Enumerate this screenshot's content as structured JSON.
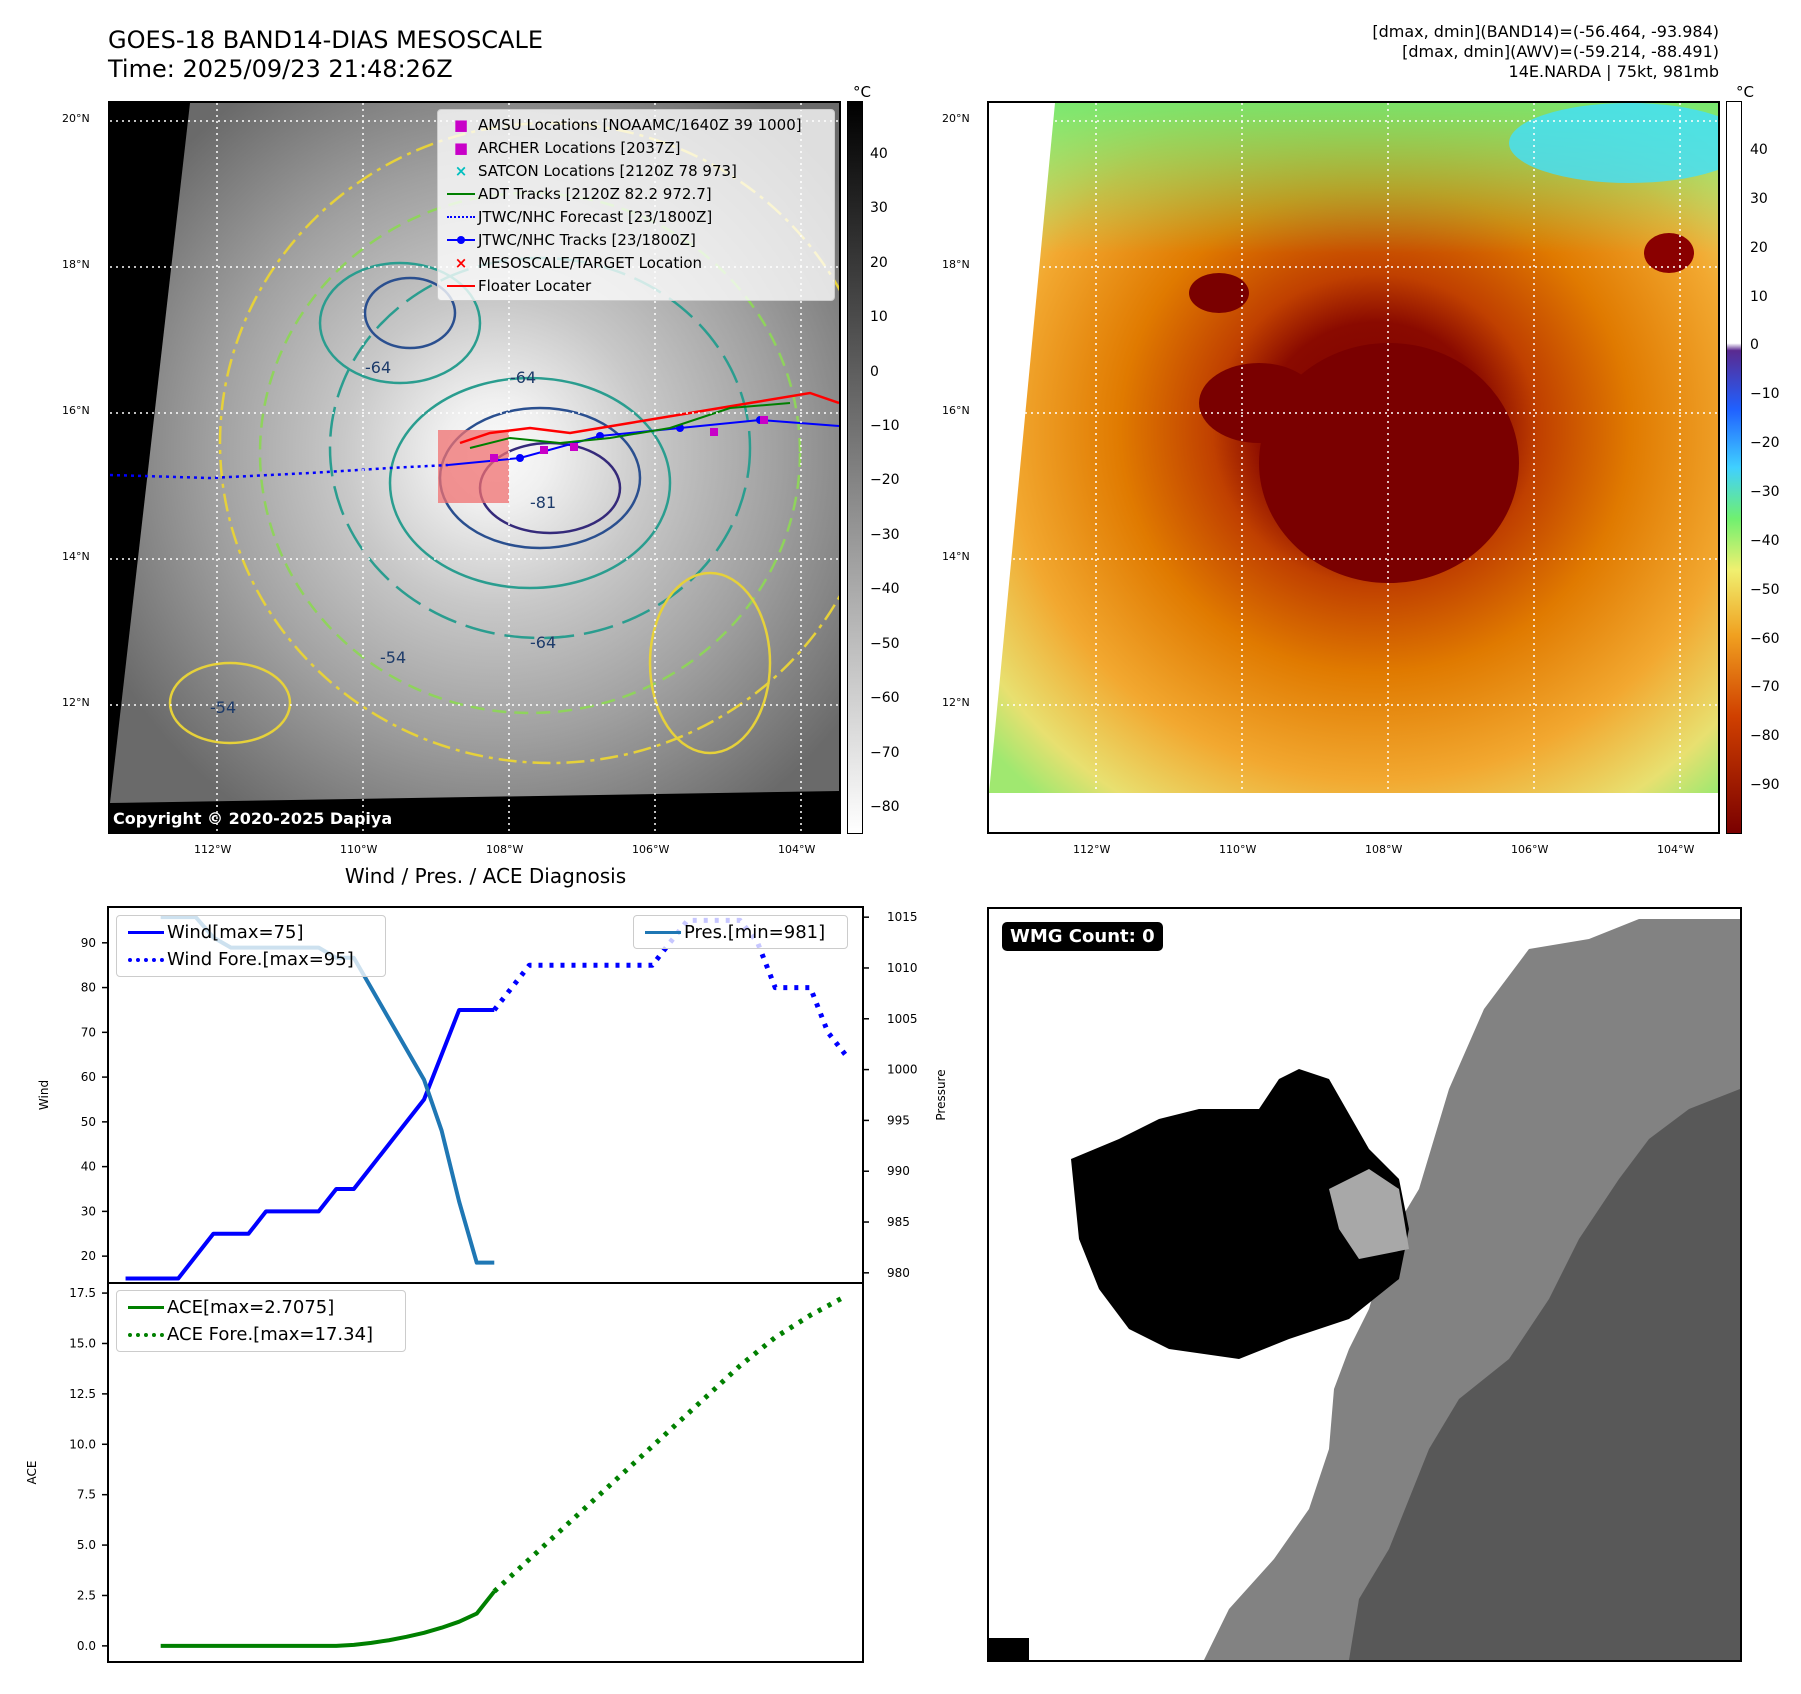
{
  "header": {
    "title_line1": "GOES-18 BAND14-DIAS MESOSCALE",
    "title_line2": "Time: 2025/09/23 21:48:26Z",
    "info_line1": "[dmax, dmin](BAND14)=(-56.464, -93.984)",
    "info_line2": "[dmax, dmin](AWV)=(-59.214, -88.491)",
    "info_line3": "14E.NARDA | 75kt, 981mb"
  },
  "map_axes": {
    "lat_labels": [
      "20°N",
      "18°N",
      "16°N",
      "14°N",
      "12°N"
    ],
    "lon_labels": [
      "112°W",
      "110°W",
      "108°W",
      "106°W",
      "104°W"
    ]
  },
  "ir_panel": {
    "legend": [
      {
        "label": "AMSU Locations [NOAAMC/1640Z 39 1000]",
        "symbol": "square",
        "color": "#c800c8"
      },
      {
        "label": "ARCHER Locations [2037Z]",
        "symbol": "square",
        "color": "#c800c8"
      },
      {
        "label": "SATCON Locations [2120Z 78 973]",
        "symbol": "x",
        "color": "#00bfbf"
      },
      {
        "label": "ADT Tracks [2120Z 82.2 972.7]",
        "symbol": "line",
        "color": "#007f00"
      },
      {
        "label": "JTWC/NHC Forecast [23/1800Z]",
        "symbol": "dotted",
        "color": "#0000ff"
      },
      {
        "label": "JTWC/NHC Tracks [23/1800Z]",
        "symbol": "line-dot",
        "color": "#0000ff"
      },
      {
        "label": "MESOSCALE/TARGET Location",
        "symbol": "x",
        "color": "#ff0000"
      },
      {
        "label": "Floater Locater",
        "symbol": "line",
        "color": "#ff0000"
      }
    ],
    "contour_labels": [
      "-64",
      "-64",
      "-81",
      "-54",
      "-54",
      "-64"
    ],
    "copyright": "Copyright © 2020-2025 Dapiya",
    "colorbar": {
      "unit": "°C",
      "ticks": [
        "40",
        "30",
        "20",
        "10",
        "0",
        "−10",
        "−20",
        "−30",
        "−40",
        "−50",
        "−60",
        "−70",
        "−80"
      ]
    }
  },
  "awv_panel": {
    "colorbar": {
      "unit": "°C",
      "ticks": [
        "40",
        "30",
        "20",
        "10",
        "0",
        "−10",
        "−20",
        "−30",
        "−40",
        "−50",
        "−60",
        "−70",
        "−80",
        "−90"
      ]
    }
  },
  "wmg_panel": {
    "badge": "WMG Count: 0"
  },
  "diag_title": "Wind / Pres. / ACE Diagnosis",
  "chart_data": [
    {
      "type": "line",
      "title": "Wind / Pres. / ACE Diagnosis",
      "ylabel": "Wind",
      "y2label": "Pressure",
      "ylim": [
        14,
        98
      ],
      "y2lim": [
        979,
        1016
      ],
      "yticks": [
        "90",
        "80",
        "70",
        "60",
        "50",
        "40",
        "30",
        "20"
      ],
      "y2ticks": [
        "1015",
        "1010",
        "1005",
        "1000",
        "995",
        "990",
        "985",
        "980"
      ],
      "series": [
        {
          "name": "Wind[max=75]",
          "axis": "left",
          "style": "solid",
          "color": "#0000ff",
          "x": [
            0,
            1,
            2,
            3,
            4,
            5,
            6,
            7,
            8,
            9,
            10,
            11,
            12,
            13,
            14,
            15,
            16,
            17,
            18,
            19,
            20,
            21
          ],
          "values": [
            15,
            15,
            15,
            15,
            20,
            25,
            25,
            25,
            30,
            30,
            30,
            30,
            35,
            35,
            40,
            45,
            50,
            55,
            65,
            75,
            75,
            75
          ]
        },
        {
          "name": "Wind Fore.[max=95]",
          "axis": "left",
          "style": "dotted",
          "color": "#0000ff",
          "x": [
            21,
            22,
            23,
            25,
            27,
            28,
            29,
            30,
            31,
            32,
            33,
            34,
            35,
            36,
            37,
            38,
            39,
            40,
            41
          ],
          "values": [
            75,
            80,
            85,
            85,
            85,
            85,
            85,
            85,
            90,
            95,
            95,
            95,
            95,
            90,
            80,
            80,
            80,
            70,
            65
          ]
        },
        {
          "name": "Pres.[min=981]",
          "axis": "right",
          "style": "solid",
          "color": "#1f77b4",
          "x": [
            2,
            3,
            4,
            5,
            6,
            7,
            8,
            9,
            10,
            11,
            12,
            13,
            14,
            15,
            16,
            17,
            18,
            19,
            20,
            21
          ],
          "values": [
            1015,
            1015,
            1015,
            1013,
            1012,
            1012,
            1012,
            1012,
            1012,
            1012,
            1011,
            1011,
            1008,
            1005,
            1002,
            999,
            994,
            987,
            981,
            981
          ]
        }
      ],
      "legend_left": [
        "Wind[max=75]",
        "Wind Fore.[max=95]"
      ],
      "legend_right": [
        "Pres.[min=981]"
      ]
    },
    {
      "type": "line",
      "ylabel": "ACE",
      "ylim": [
        -0.8,
        18
      ],
      "yticks": [
        "17.5",
        "15.0",
        "12.5",
        "10.0",
        "7.5",
        "5.0",
        "2.5",
        "0.0"
      ],
      "series": [
        {
          "name": "ACE[max=2.7075]",
          "style": "solid",
          "color": "#008000",
          "x": [
            2,
            4,
            6,
            8,
            10,
            12,
            13,
            14,
            15,
            16,
            17,
            18,
            19,
            20,
            21
          ],
          "values": [
            0,
            0,
            0,
            0,
            0,
            0,
            0.05,
            0.15,
            0.28,
            0.45,
            0.65,
            0.9,
            1.2,
            1.6,
            2.7
          ]
        },
        {
          "name": "ACE Fore.[max=17.34]",
          "style": "dotted",
          "color": "#008000",
          "x": [
            21,
            23,
            25,
            27,
            29,
            31,
            33,
            35,
            37,
            39,
            41
          ],
          "values": [
            2.7,
            4.3,
            5.9,
            7.5,
            9.1,
            10.7,
            12.3,
            13.9,
            15.3,
            16.4,
            17.34
          ]
        }
      ],
      "legend": [
        "ACE[max=2.7075]",
        "ACE Fore.[max=17.34]"
      ]
    }
  ]
}
